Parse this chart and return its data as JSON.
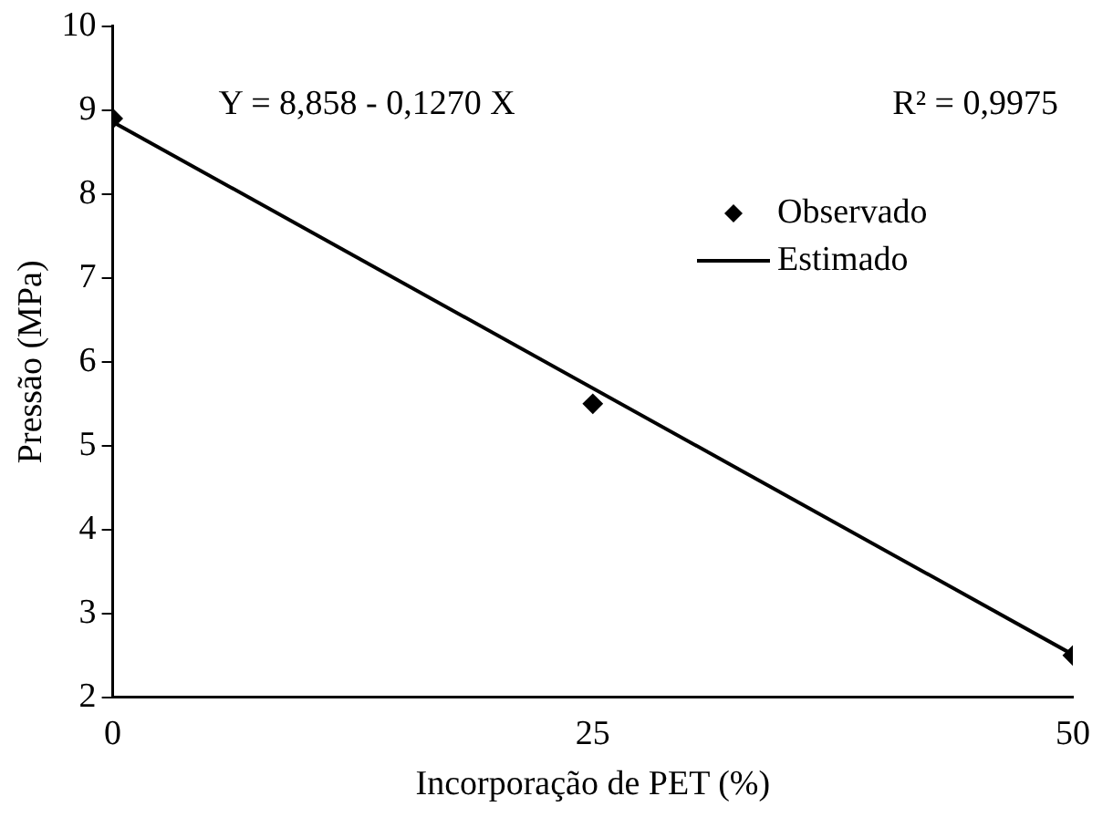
{
  "chart_data": {
    "type": "scatter",
    "xlabel": "Incorporação de PET (%)",
    "ylabel": "Pressão (MPa)",
    "annotations": [
      "Y = 8,858 - 0,1270 X",
      "R² = 0,9975"
    ],
    "series": [
      {
        "name": "Observado",
        "type": "scatter",
        "marker": "diamond",
        "color": "#000000",
        "x": [
          0,
          25,
          50
        ],
        "values": [
          8.9,
          5.5,
          2.5
        ]
      },
      {
        "name": "Estimado",
        "type": "line",
        "marker": "none",
        "line_style": "solid",
        "color": "#000000",
        "x": [
          0,
          50
        ],
        "values": [
          8.86,
          2.51
        ]
      }
    ],
    "xlim": [
      0,
      50
    ],
    "xticks": [
      0,
      25,
      50
    ],
    "ylim": [
      2,
      10
    ],
    "yticks": [
      2,
      3,
      4,
      5,
      6,
      7,
      8,
      9,
      10
    ],
    "grid": false,
    "legend": "right"
  }
}
